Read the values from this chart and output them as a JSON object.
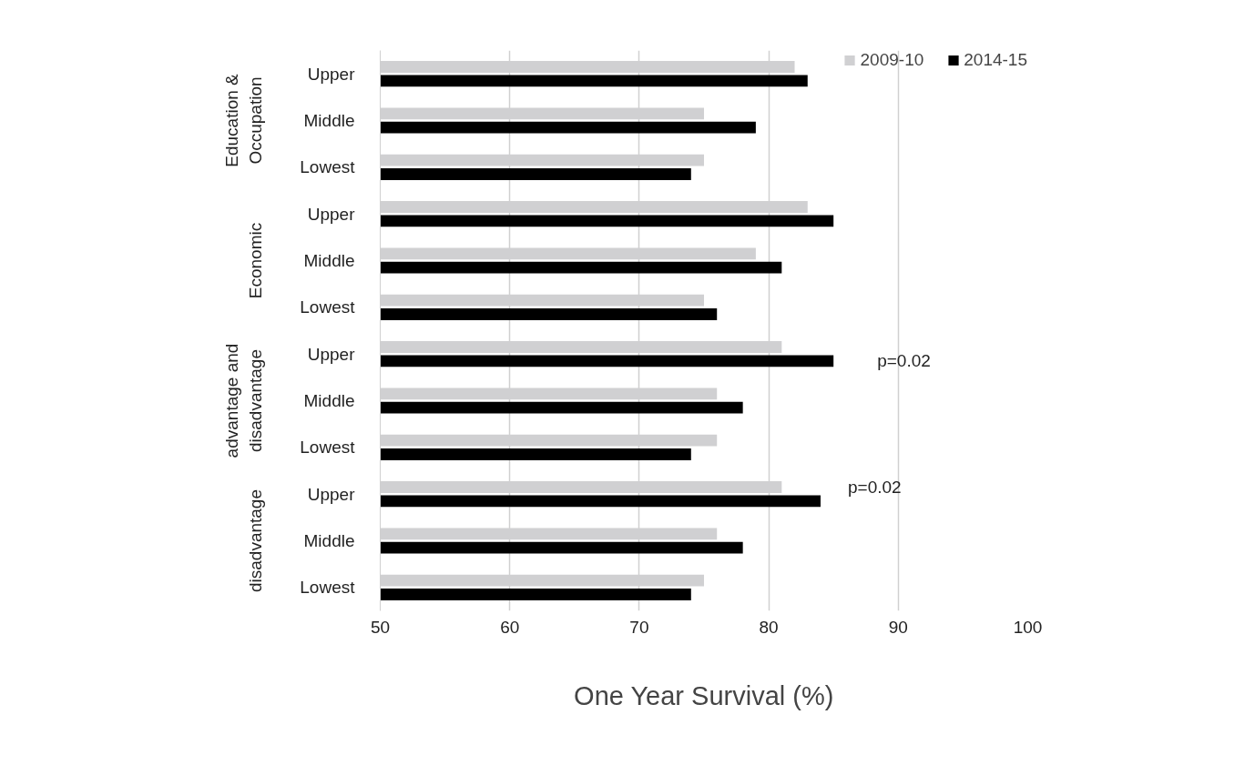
{
  "chart_data": {
    "type": "bar",
    "orientation": "horizontal",
    "xlabel": "One Year Survival (%)",
    "categories": [
      "Upper",
      "Middle",
      "Lowest",
      "Upper",
      "Middle",
      "Lowest",
      "Upper",
      "Middle",
      "Lowest",
      "Upper",
      "Middle",
      "Lowest"
    ],
    "series": [
      {
        "name": "2009-10",
        "color": "#d0d0d2",
        "values": [
          82,
          75,
          75,
          83,
          79,
          75,
          81,
          76,
          76,
          81,
          76,
          75
        ]
      },
      {
        "name": "2014-15",
        "color": "#000000",
        "values": [
          83,
          79,
          74,
          85,
          81,
          76,
          85,
          78,
          74,
          84,
          78,
          74
        ]
      }
    ],
    "annotations": [
      "Education &\nOccupation",
      "Economic",
      "advantage and\ndisadvantage",
      "disadvantage",
      "p=0.02",
      "p=0.02"
    ],
    "xlim": [
      50,
      100
    ],
    "xticks": [
      50,
      60,
      70,
      80,
      90,
      100
    ],
    "grid": "x",
    "legend": "top right"
  }
}
